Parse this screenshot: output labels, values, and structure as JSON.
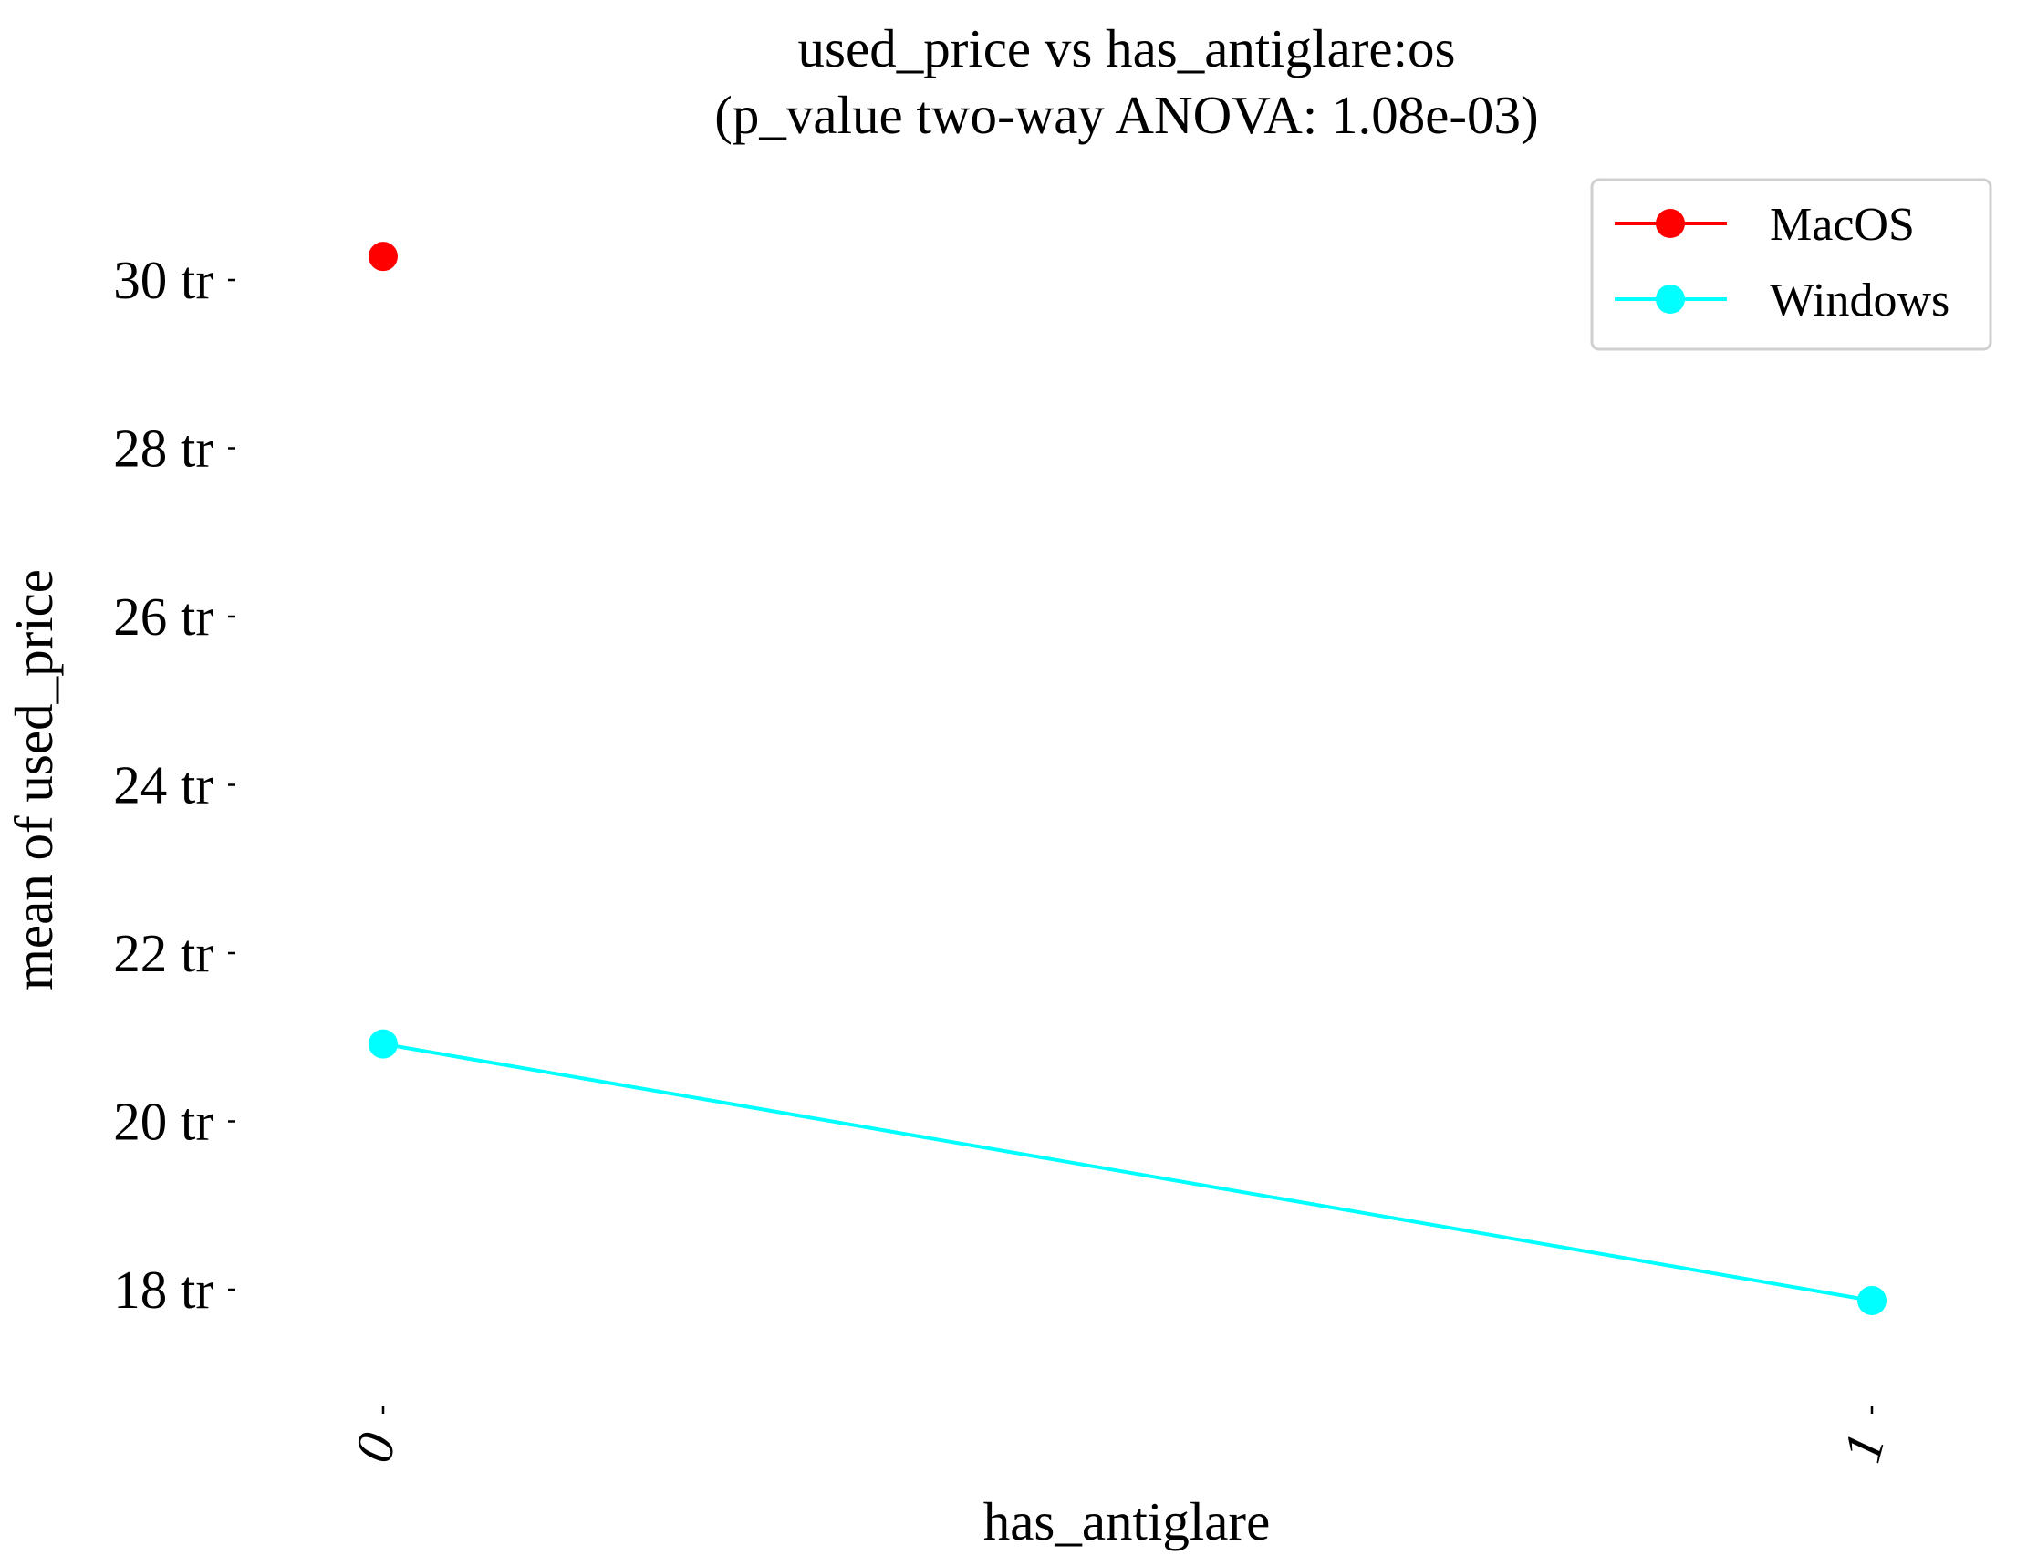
{
  "chart_data": {
    "type": "line",
    "title": "used_price vs has_antiglare:os",
    "subtitle": "(p_value two-way ANOVA: 1.08e-03)",
    "xlabel": "has_antiglare",
    "ylabel": "mean of used_price",
    "categories": [
      "0",
      "1"
    ],
    "ylim": [
      16.8,
      31.2
    ],
    "y_ticks": [
      18,
      20,
      22,
      24,
      26,
      28,
      30
    ],
    "y_tick_labels": [
      "18 tr",
      "20 tr",
      "22 tr",
      "24 tr",
      "26 tr",
      "28 tr",
      "30 tr"
    ],
    "grid": false,
    "legend_position": "top-right",
    "series": [
      {
        "name": "MacOS",
        "color": "#ff0000",
        "values": [
          30.28,
          null
        ]
      },
      {
        "name": "Windows",
        "color": "#00ffff",
        "values": [
          20.92,
          17.87
        ]
      }
    ]
  }
}
